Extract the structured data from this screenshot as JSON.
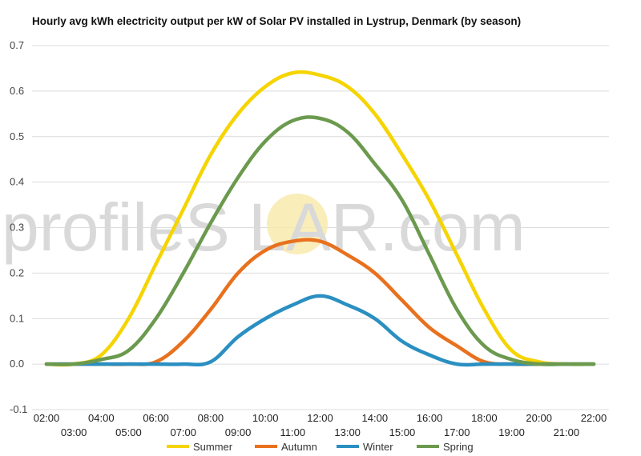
{
  "chart_data": {
    "type": "line",
    "title": "Hourly avg kWh electricity output per kW of Solar PV installed in Lystrup, Denmark (by season)",
    "xlabel": "",
    "ylabel": "",
    "ylim": [
      -0.1,
      0.7
    ],
    "yticks": [
      "-0.1",
      "0.0",
      "0.1",
      "0.2",
      "0.3",
      "0.4",
      "0.5",
      "0.6",
      "0.7"
    ],
    "grid": true,
    "legend_position": "bottom",
    "categories": [
      "02:00",
      "03:00",
      "04:00",
      "05:00",
      "06:00",
      "07:00",
      "08:00",
      "09:00",
      "10:00",
      "11:00",
      "12:00",
      "13:00",
      "14:00",
      "15:00",
      "16:00",
      "17:00",
      "18:00",
      "19:00",
      "20:00",
      "21:00",
      "22:00"
    ],
    "series": [
      {
        "name": "Summer",
        "color": "#f5d400",
        "values": [
          0.0,
          0.0,
          0.02,
          0.1,
          0.22,
          0.34,
          0.46,
          0.55,
          0.61,
          0.64,
          0.635,
          0.61,
          0.55,
          0.46,
          0.36,
          0.24,
          0.12,
          0.03,
          0.005,
          0.0,
          0.0
        ]
      },
      {
        "name": "Autumn",
        "color": "#e8711e",
        "values": [
          0.0,
          0.0,
          0.0,
          0.0,
          0.005,
          0.05,
          0.12,
          0.2,
          0.25,
          0.27,
          0.27,
          0.24,
          0.2,
          0.14,
          0.08,
          0.04,
          0.005,
          0.0,
          0.0,
          0.0,
          0.0
        ]
      },
      {
        "name": "Winter",
        "color": "#2a8fc1",
        "values": [
          0.0,
          0.0,
          0.0,
          0.0,
          0.0,
          0.0,
          0.005,
          0.06,
          0.1,
          0.13,
          0.15,
          0.13,
          0.1,
          0.05,
          0.02,
          0.0,
          0.0,
          0.0,
          0.0,
          0.0,
          0.0
        ]
      },
      {
        "name": "Spring",
        "color": "#6b9a4e",
        "values": [
          0.0,
          0.0,
          0.01,
          0.03,
          0.1,
          0.2,
          0.31,
          0.41,
          0.49,
          0.535,
          0.54,
          0.51,
          0.44,
          0.36,
          0.24,
          0.12,
          0.04,
          0.01,
          0.0,
          0.0,
          0.0
        ]
      }
    ]
  },
  "watermark": {
    "text": "profileS  LAR.com",
    "sun_color": "#f7e9a8"
  }
}
